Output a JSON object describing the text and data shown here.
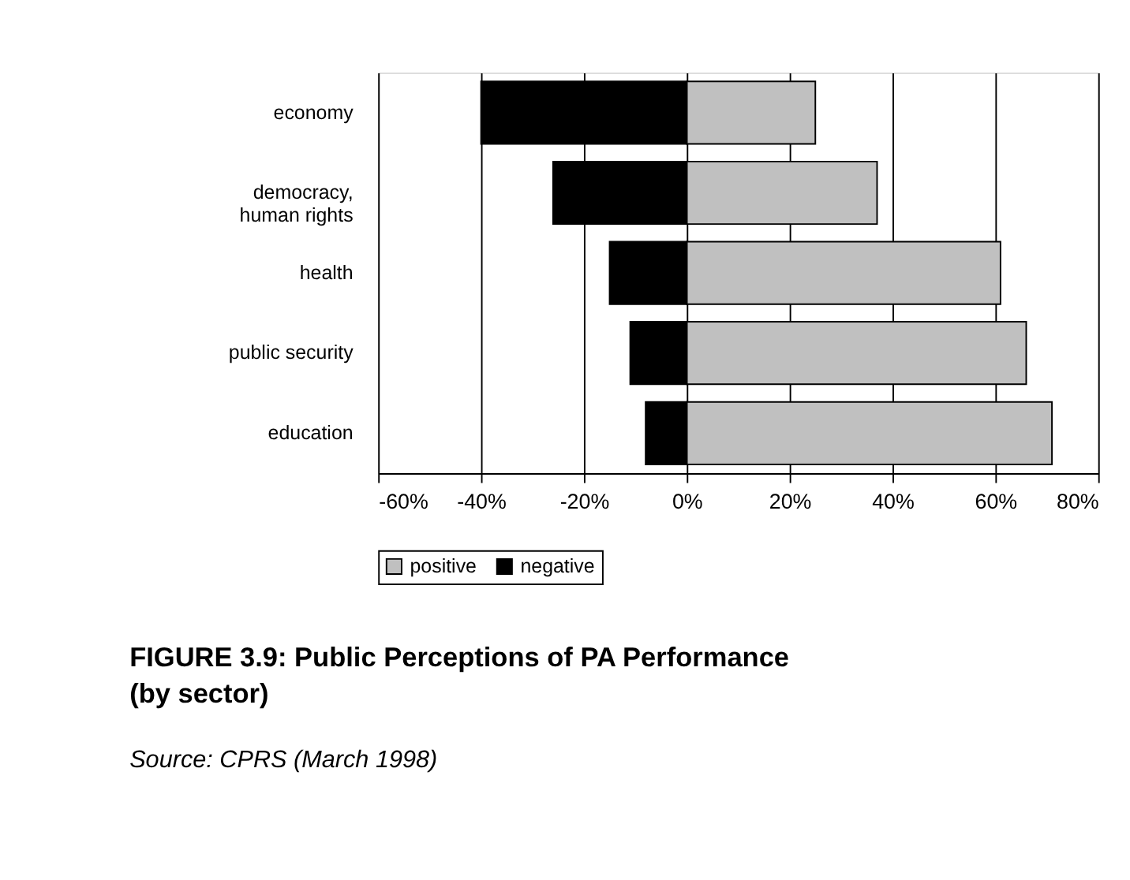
{
  "chart_data": {
    "type": "bar",
    "orientation": "horizontal",
    "stacked": true,
    "title": "FIGURE 3.9: Public Perceptions of PA Performance (by sector)",
    "categories": [
      "economy",
      "democracy,\nhuman rights",
      "health",
      "public security",
      "education"
    ],
    "series": [
      {
        "name": "positive",
        "color": "#c0c0c0",
        "values": [
          25,
          37,
          61,
          66,
          71
        ]
      },
      {
        "name": "negative",
        "color": "#000000",
        "values": [
          -40,
          -26,
          -15,
          -11,
          -8
        ]
      }
    ],
    "xlim": [
      -60,
      80
    ],
    "xticks": [
      {
        "value": -60,
        "label": "-60%"
      },
      {
        "value": -40,
        "label": "-40%"
      },
      {
        "value": -20,
        "label": "-20%"
      },
      {
        "value": 0,
        "label": "0%"
      },
      {
        "value": 20,
        "label": "20%"
      },
      {
        "value": 40,
        "label": "40%"
      },
      {
        "value": 60,
        "label": "60%"
      },
      {
        "value": 80,
        "label": "80%"
      }
    ],
    "grid": "x",
    "legend": "bottom",
    "annotations": [
      "Source: CPRS (March 1998)"
    ]
  }
}
